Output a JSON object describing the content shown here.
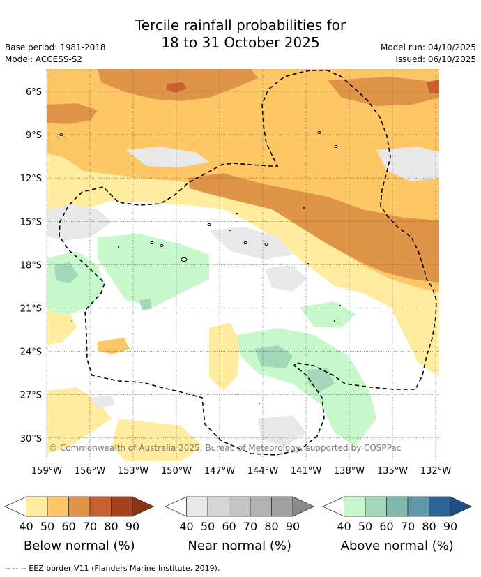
{
  "title": {
    "line1": "Tercile rainfall probabilities for",
    "line2": "18 to 31 October 2025"
  },
  "meta": {
    "base_period": "Base period: 1981-2018",
    "model": "Model: ACCESS-S2",
    "model_run": "Model run: 04/10/2025",
    "issued": "Issued: 06/10/2025"
  },
  "map": {
    "copyright": "© Commonwealth of Australia 2025, Bureau of Meteorology, supported by COSPPac",
    "lat_labels": [
      "6°S",
      "9°S",
      "12°S",
      "15°S",
      "18°S",
      "21°S",
      "24°S",
      "27°S",
      "30°S"
    ],
    "lon_labels": [
      "159°W",
      "156°W",
      "153°W",
      "150°W",
      "147°W",
      "144°W",
      "141°W",
      "138°W",
      "135°W",
      "132°W"
    ]
  },
  "legend": {
    "below": {
      "label": "Below normal (%)",
      "ticks": [
        "40",
        "50",
        "60",
        "70",
        "80",
        "90"
      ],
      "colors": [
        "#ffffff",
        "#ffec9f",
        "#fdc765",
        "#e09447",
        "#c8602f",
        "#a6431f",
        "#8a3317"
      ]
    },
    "near": {
      "label": "Near normal (%)",
      "ticks": [
        "40",
        "50",
        "60",
        "70",
        "80",
        "90"
      ],
      "colors": [
        "#ffffff",
        "#e8e8e8",
        "#d6d6d6",
        "#c4c4c4",
        "#b2b2b2",
        "#a0a0a0",
        "#8a8a8a"
      ]
    },
    "above": {
      "label": "Above normal (%)",
      "ticks": [
        "40",
        "50",
        "60",
        "70",
        "80",
        "90"
      ],
      "colors": [
        "#ffffff",
        "#c7f8cc",
        "#a3d8b8",
        "#7fb9ae",
        "#5f98a6",
        "#2d6496",
        "#1f4f86"
      ]
    }
  },
  "footer": {
    "eez_note": "--  --  -- EEZ border V11 (Flanders Marine Institute, 2019)."
  }
}
